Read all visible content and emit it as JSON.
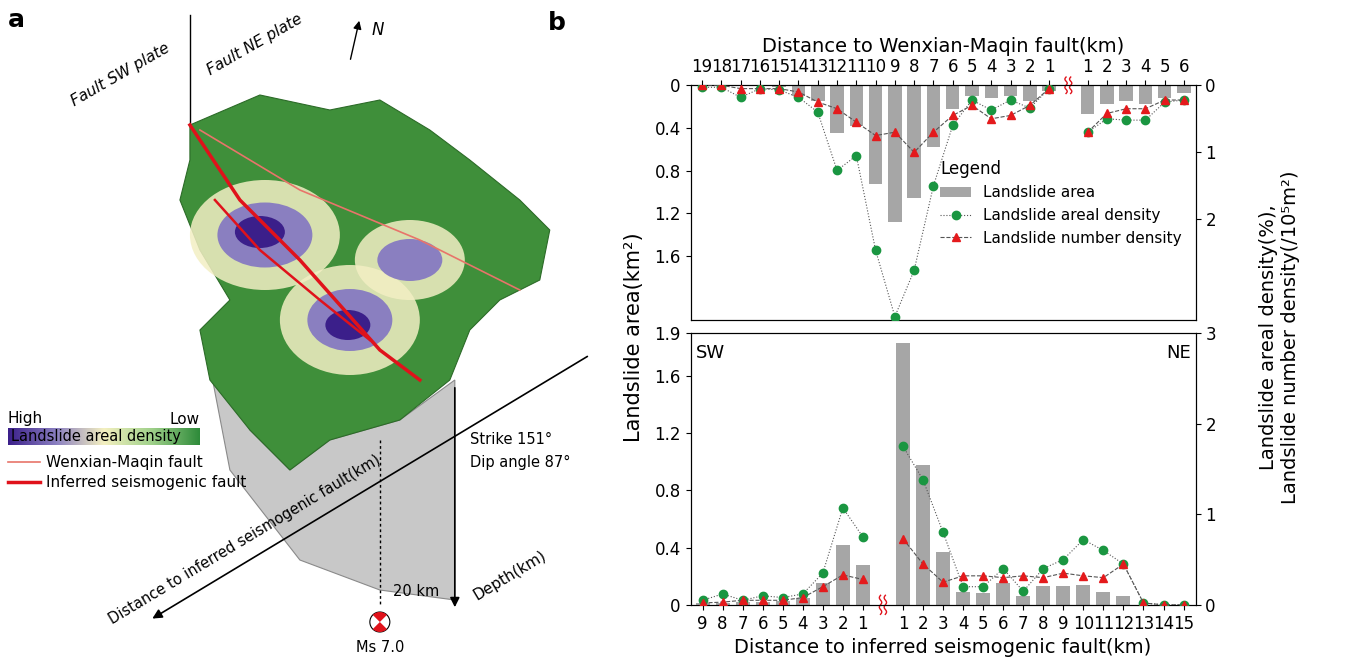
{
  "panel_labels": [
    "a",
    "b"
  ],
  "panel_a": {
    "north_label": "N",
    "plate_labels": [
      "Fault SW plate",
      "Fault NE plate"
    ],
    "colorbar": {
      "high": "High",
      "low": "Low",
      "title": "Landslide areal density"
    },
    "lines": [
      {
        "name": "Wenxian-Maqin fault",
        "color": "#e8746a"
      },
      {
        "name": "Inferred seismogenic fault",
        "color": "#e0121b"
      }
    ],
    "axis_labels": {
      "distance": "Distance to inferred seismogenic fault(km)",
      "depth": "Depth(km)"
    },
    "fault_geometry": [
      "Strike 151°",
      "Dip angle 87°"
    ],
    "hypocenter": {
      "depth": "20 km",
      "magnitude": "Ms 7.0"
    }
  },
  "shared_labels": {
    "y_label": "Landslide area(km²)",
    "y2_label": "Landslide areal density(%),\nLandslide number density(/10⁵m²)"
  },
  "chart_data": [
    {
      "type": "bar",
      "x_label": "Distance to Wenxian-Maqin fault(km)",
      "categories": [
        19,
        18,
        17,
        16,
        15,
        14,
        13,
        12,
        11,
        10,
        9,
        8,
        7,
        6,
        5,
        4,
        3,
        2,
        1,
        null,
        1,
        2,
        3,
        4,
        5,
        6
      ],
      "ylim": [
        2.2,
        0
      ],
      "yticks": [
        0,
        0.4,
        0.8,
        1.2,
        1.6
      ],
      "y2lim": [
        3.5,
        0
      ],
      "y2ticks": [
        0,
        1,
        2
      ],
      "legend": "center right",
      "legend_title": "Legend",
      "series": [
        {
          "name": "Landslide area",
          "type": "bar",
          "color": "#a6a6a6",
          "values": [
            0,
            0,
            0,
            0,
            0.02,
            0.1,
            0.15,
            0.45,
            0.38,
            0.93,
            1.28,
            1.06,
            0.58,
            0.22,
            0.1,
            0.12,
            0.1,
            0.15,
            0.05,
            null,
            0.27,
            0.18,
            0.15,
            0.18,
            0.12,
            0.07
          ]
        },
        {
          "name": "Landslide areal density",
          "type": "line",
          "axis": "y2",
          "color": "#1a9641",
          "marker": "o",
          "line_style": "dotted",
          "values": [
            0.03,
            0.03,
            0.18,
            0.05,
            0.07,
            0.18,
            0.4,
            1.27,
            1.05,
            2.46,
            3.45,
            2.76,
            1.5,
            0.6,
            0.22,
            0.37,
            0.22,
            0.34,
            0.05,
            null,
            0.7,
            0.5,
            0.52,
            0.52,
            0.25,
            0.22
          ]
        },
        {
          "name": "Landslide number density",
          "type": "line",
          "axis": "y2",
          "color": "#e41a1c",
          "marker": "^",
          "line_style": "dashed",
          "values": [
            0,
            0,
            0.05,
            0.05,
            0.05,
            0.1,
            0.25,
            0.35,
            0.55,
            0.75,
            0.7,
            1.0,
            0.7,
            0.45,
            0.3,
            0.5,
            0.45,
            0.3,
            0.05,
            null,
            0.7,
            0.42,
            0.35,
            0.35,
            0.22,
            0.22
          ]
        }
      ]
    },
    {
      "type": "bar",
      "x_label": "Distance to inferred seismogenic fault(km)",
      "side_labels": [
        "SW",
        "NE"
      ],
      "categories": [
        9,
        8,
        7,
        6,
        5,
        4,
        3,
        2,
        1,
        null,
        1,
        2,
        3,
        4,
        5,
        6,
        7,
        8,
        9,
        10,
        11,
        12,
        13,
        14,
        15
      ],
      "ylim": [
        0,
        1.9
      ],
      "yticks": [
        0,
        0.4,
        0.8,
        1.2,
        1.6,
        1.9
      ],
      "y2lim": [
        0,
        3
      ],
      "y2ticks": [
        0,
        1,
        2,
        3
      ],
      "series": [
        {
          "name": "Landslide area",
          "type": "bar",
          "color": "#a6a6a6",
          "values": [
            0.01,
            0.01,
            0.02,
            0.02,
            0.03,
            0.05,
            0.15,
            0.42,
            0.28,
            null,
            1.83,
            0.98,
            0.37,
            0.09,
            0.08,
            0.15,
            0.06,
            0.13,
            0.13,
            0.14,
            0.09,
            0.06,
            0,
            0,
            0
          ]
        },
        {
          "name": "Landslide areal density",
          "type": "line",
          "axis": "y2",
          "color": "#1a9641",
          "marker": "o",
          "line_style": "dotted",
          "values": [
            0.05,
            0.12,
            0.05,
            0.1,
            0.08,
            0.12,
            0.35,
            1.07,
            0.75,
            null,
            1.75,
            1.38,
            0.8,
            0.2,
            0.2,
            0.4,
            0.15,
            0.4,
            0.5,
            0.72,
            0.6,
            0.45,
            0.02,
            0,
            0
          ]
        },
        {
          "name": "Landslide number density",
          "type": "line",
          "axis": "y2",
          "color": "#e41a1c",
          "marker": "^",
          "line_style": "dashed",
          "values": [
            0.02,
            0.03,
            0.05,
            0.05,
            0.05,
            0.08,
            0.2,
            0.33,
            0.28,
            null,
            0.73,
            0.45,
            0.25,
            0.32,
            0.32,
            0.3,
            0.32,
            0.3,
            0.35,
            0.32,
            0.3,
            0.45,
            0.02,
            0,
            0
          ]
        }
      ]
    }
  ]
}
